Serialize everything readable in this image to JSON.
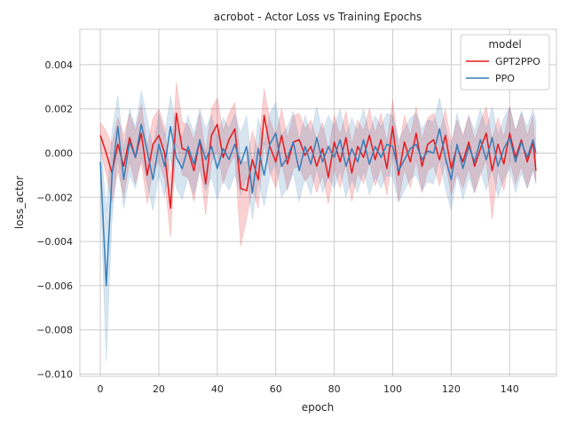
{
  "chart_data": {
    "type": "line",
    "title": "acrobot - Actor Loss vs Training Epochs",
    "xlabel": "epoch",
    "ylabel": "loss_actor",
    "xlim": [
      -7,
      156
    ],
    "ylim": [
      -0.0101,
      0.0056
    ],
    "xticks": [
      0,
      20,
      40,
      60,
      80,
      100,
      120,
      140
    ],
    "xtick_labels": [
      "0",
      "20",
      "40",
      "60",
      "80",
      "100",
      "120",
      "140"
    ],
    "yticks": [
      -0.01,
      -0.008,
      -0.006,
      -0.004,
      -0.002,
      0.0,
      0.002,
      0.004
    ],
    "ytick_labels": [
      "−0.010",
      "−0.008",
      "−0.006",
      "−0.004",
      "−0.002",
      "0.000",
      "0.002",
      "0.004"
    ],
    "grid": true,
    "legend": {
      "title": "model",
      "position": "top-right"
    },
    "series": [
      {
        "name": "GPT2PPO",
        "color": "#e41a1c",
        "x": [
          0,
          2,
          4,
          6,
          8,
          10,
          12,
          14,
          16,
          18,
          20,
          22,
          24,
          26,
          28,
          30,
          32,
          34,
          36,
          38,
          40,
          42,
          44,
          46,
          48,
          50,
          52,
          54,
          56,
          58,
          60,
          62,
          64,
          66,
          68,
          70,
          72,
          74,
          76,
          78,
          80,
          82,
          84,
          86,
          88,
          90,
          92,
          94,
          96,
          98,
          100,
          102,
          104,
          106,
          108,
          110,
          112,
          114,
          116,
          118,
          120,
          122,
          124,
          126,
          128,
          130,
          132,
          134,
          136,
          138,
          140,
          142,
          144,
          146,
          148,
          149
        ],
        "y": [
          0.0008,
          0.0,
          -0.0009,
          0.0004,
          -0.0006,
          0.0007,
          -0.0002,
          0.0009,
          -0.001,
          0.0004,
          0.0008,
          0.0,
          -0.0025,
          0.0018,
          0.0002,
          0.0001,
          -0.0008,
          0.0006,
          -0.0014,
          0.0008,
          0.0013,
          -0.0002,
          0.0006,
          0.0011,
          -0.0016,
          -0.0017,
          -0.0003,
          -0.0012,
          0.0017,
          0.0003,
          -0.0004,
          0.0008,
          -0.0005,
          0.0005,
          0.0006,
          -0.0001,
          0.0003,
          -0.0006,
          0.0002,
          -0.0011,
          0.0005,
          -0.0004,
          0.0007,
          -0.0009,
          0.0003,
          -0.0002,
          0.0008,
          -0.0003,
          0.0006,
          -0.0007,
          0.0012,
          -0.001,
          0.0005,
          -0.0004,
          0.0009,
          -0.0006,
          0.0004,
          0.0006,
          -0.0003,
          0.0008,
          -0.0007,
          0.0003,
          -0.0004,
          0.0005,
          -0.0006,
          0.0002,
          0.0009,
          -0.0008,
          0.0004,
          -0.0005,
          0.0009,
          -0.0002,
          0.0006,
          -0.0004,
          0.0005,
          -0.0008
        ],
        "lower": [
          0.0002,
          -0.001,
          -0.0022,
          -0.0008,
          -0.002,
          -0.0004,
          -0.0014,
          -0.0004,
          -0.0023,
          -0.0008,
          -0.0004,
          -0.0012,
          -0.0038,
          0.0004,
          -0.001,
          -0.0011,
          -0.0022,
          -0.0006,
          -0.0028,
          -0.0004,
          0.0001,
          -0.0014,
          -0.0006,
          -0.0001,
          -0.0042,
          -0.003,
          -0.0016,
          -0.0025,
          0.0005,
          -0.0009,
          -0.0016,
          -0.0004,
          -0.0017,
          -0.0007,
          -0.0006,
          -0.0013,
          -0.0009,
          -0.0018,
          -0.001,
          -0.0023,
          -0.0007,
          -0.0016,
          -0.0005,
          -0.0022,
          -0.0009,
          -0.0014,
          -0.0004,
          -0.0015,
          -0.0006,
          -0.0019,
          0.0,
          -0.0022,
          -0.0007,
          -0.0016,
          -0.0003,
          -0.0018,
          -0.0008,
          -0.0006,
          -0.0015,
          -0.0004,
          -0.0019,
          -0.0009,
          -0.0016,
          -0.0007,
          -0.0018,
          -0.001,
          -0.0003,
          -0.003,
          -0.0008,
          -0.0017,
          -0.0003,
          -0.0014,
          -0.0006,
          -0.0016,
          -0.0007,
          -0.0013
        ],
        "upper": [
          0.0014,
          0.001,
          0.0004,
          0.0016,
          0.0008,
          0.0018,
          0.001,
          0.0022,
          0.0003,
          0.0016,
          0.002,
          0.0012,
          -0.0012,
          0.0032,
          0.0014,
          0.0013,
          0.0006,
          0.0018,
          0.0,
          0.002,
          0.0025,
          0.001,
          0.0018,
          0.0023,
          -0.0004,
          -0.0004,
          0.001,
          0.0001,
          0.0029,
          0.0015,
          0.0008,
          0.002,
          0.0007,
          0.0017,
          0.0018,
          0.0011,
          0.0015,
          0.0006,
          0.0014,
          0.0001,
          0.0017,
          0.0008,
          0.0019,
          0.0004,
          0.0015,
          0.001,
          0.002,
          0.0009,
          0.0018,
          0.0005,
          0.0024,
          0.0002,
          0.0017,
          0.0008,
          0.0021,
          0.0006,
          0.0016,
          0.0018,
          0.0009,
          0.002,
          0.0005,
          0.0015,
          0.0008,
          0.0017,
          0.0006,
          0.0014,
          0.0021,
          0.0006,
          0.0016,
          0.0007,
          0.0021,
          0.001,
          0.0018,
          0.0008,
          0.0017,
          -0.0003
        ]
      },
      {
        "name": "PPO",
        "color": "#377eb8",
        "x": [
          0,
          2,
          4,
          6,
          8,
          10,
          12,
          14,
          16,
          18,
          20,
          22,
          24,
          26,
          28,
          30,
          32,
          34,
          36,
          38,
          40,
          42,
          44,
          46,
          48,
          50,
          52,
          54,
          56,
          58,
          60,
          62,
          64,
          66,
          68,
          70,
          72,
          74,
          76,
          78,
          80,
          82,
          84,
          86,
          88,
          90,
          92,
          94,
          96,
          98,
          100,
          102,
          104,
          106,
          108,
          110,
          112,
          114,
          116,
          118,
          120,
          122,
          124,
          126,
          128,
          130,
          132,
          134,
          136,
          138,
          140,
          142,
          144,
          146,
          148,
          149
        ],
        "y": [
          -0.0004,
          -0.006,
          -0.001,
          0.0012,
          -0.0012,
          0.0005,
          -0.0002,
          0.0013,
          0.0001,
          -0.0012,
          0.0004,
          -0.0006,
          0.0012,
          -0.0002,
          -0.0007,
          0.0003,
          -0.0005,
          0.0006,
          -0.0003,
          0.0003,
          -0.0007,
          0.0002,
          -0.0003,
          0.0004,
          -0.0005,
          0.0003,
          -0.0018,
          0.0002,
          -0.001,
          0.0004,
          0.0009,
          -0.0006,
          -0.0002,
          0.0005,
          -0.0008,
          0.0003,
          -0.0005,
          0.0007,
          -0.0004,
          0.0003,
          -0.0002,
          0.0006,
          -0.0006,
          0.0002,
          -0.0004,
          0.0006,
          -0.0005,
          0.0003,
          -0.0002,
          0.0004,
          0.0003,
          -0.0008,
          -0.0003,
          0.0002,
          0.0004,
          -0.0003,
          0.0001,
          0.0,
          0.0011,
          -0.0002,
          -0.0012,
          0.0004,
          -0.0007,
          0.0003,
          -0.0004,
          0.0006,
          -0.0003,
          0.0007,
          -0.0006,
          0.0002,
          0.0007,
          -0.0004,
          0.0005,
          -0.0002,
          0.0006,
          0.0
        ],
        "lower": [
          -0.0016,
          -0.0094,
          -0.003,
          -0.0002,
          -0.0025,
          -0.001,
          -0.0016,
          -0.0002,
          -0.0014,
          -0.0026,
          -0.001,
          -0.002,
          -0.0002,
          -0.0016,
          -0.0021,
          -0.0011,
          -0.0019,
          -0.0008,
          -0.0017,
          -0.0011,
          -0.0021,
          -0.0012,
          -0.0017,
          -0.001,
          -0.0019,
          -0.0011,
          -0.003,
          -0.0012,
          -0.0024,
          -0.001,
          -0.0005,
          -0.002,
          -0.0016,
          -0.0009,
          -0.0022,
          -0.0011,
          -0.0019,
          -0.0007,
          -0.0018,
          -0.0011,
          -0.0016,
          -0.0008,
          -0.002,
          -0.0012,
          -0.0018,
          -0.0008,
          -0.0019,
          -0.0011,
          -0.0016,
          -0.001,
          -0.0011,
          -0.0022,
          -0.0017,
          -0.0012,
          -0.001,
          -0.0017,
          -0.0013,
          -0.0014,
          -0.0003,
          -0.0016,
          -0.0026,
          -0.001,
          -0.0021,
          -0.0011,
          -0.0018,
          -0.0008,
          -0.0017,
          -0.0007,
          -0.002,
          -0.0012,
          -0.0007,
          -0.0018,
          -0.0009,
          -0.0016,
          -0.0008,
          -0.0014
        ],
        "upper": [
          0.0008,
          -0.0026,
          0.001,
          0.0026,
          0.0001,
          0.002,
          0.0012,
          0.0028,
          0.0016,
          0.0002,
          0.0018,
          0.0008,
          0.0026,
          0.0012,
          0.0007,
          0.0017,
          0.0009,
          0.002,
          0.0011,
          0.0017,
          0.0007,
          0.0016,
          0.0011,
          0.0018,
          0.0009,
          0.0017,
          -0.0006,
          0.0016,
          0.0004,
          0.0018,
          0.0023,
          0.0008,
          0.0012,
          0.0019,
          0.0006,
          0.0017,
          0.0009,
          0.0021,
          0.001,
          0.0017,
          0.0012,
          0.002,
          0.0008,
          0.0016,
          0.001,
          0.002,
          0.0009,
          0.0017,
          0.0012,
          0.0018,
          0.0017,
          0.0006,
          0.0011,
          0.0016,
          0.0018,
          0.0011,
          0.0015,
          0.0014,
          0.0025,
          0.0012,
          0.0002,
          0.0018,
          0.0007,
          0.0017,
          0.001,
          0.002,
          0.0011,
          0.0021,
          0.0008,
          0.0016,
          0.0021,
          0.001,
          0.0019,
          0.0012,
          0.002,
          0.0014
        ]
      }
    ]
  }
}
